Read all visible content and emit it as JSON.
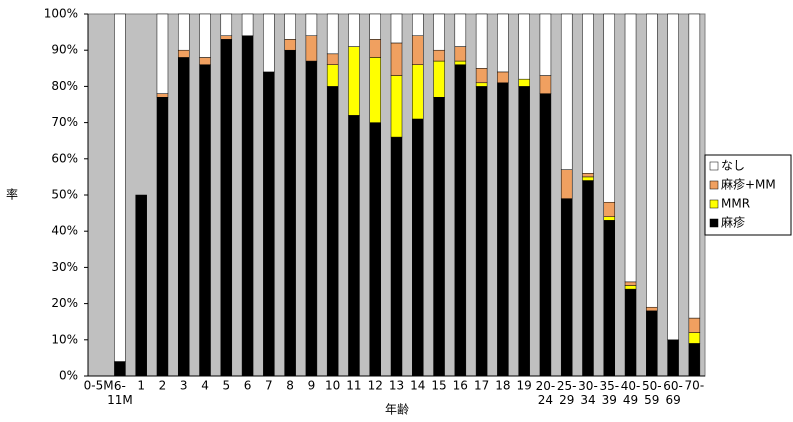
{
  "chart_data": {
    "type": "stacked-bar",
    "x_label": "年齢",
    "y_label": "率",
    "categories": [
      "0-5M",
      "6-11M",
      "1",
      "2",
      "3",
      "4",
      "5",
      "6",
      "7",
      "8",
      "9",
      "10",
      "11",
      "12",
      "13",
      "14",
      "15",
      "16",
      "17",
      "18",
      "19",
      "20-24",
      "25-29",
      "30-34",
      "35-39",
      "40-49",
      "50-59",
      "60-69",
      "70-"
    ],
    "series": [
      {
        "name": "麻疹",
        "color": "#000000",
        "values": [
          0,
          4,
          50,
          77,
          88,
          86,
          93,
          94,
          84,
          90,
          87,
          80,
          72,
          70,
          66,
          71,
          77,
          86,
          80,
          81,
          80,
          78,
          49,
          54,
          43,
          24,
          18,
          10,
          9
        ]
      },
      {
        "name": "MMR",
        "color": "#ffff00",
        "values": [
          0,
          0,
          0,
          0,
          0,
          0,
          0,
          0,
          0,
          0,
          0,
          6,
          19,
          18,
          17,
          15,
          10,
          1,
          1,
          0,
          2,
          0,
          0,
          1,
          1,
          1,
          0,
          0,
          3
        ]
      },
      {
        "name": "麻疹+MM",
        "color": "#f0a060",
        "values": [
          0,
          0,
          0,
          1,
          2,
          2,
          1,
          0,
          0,
          3,
          7,
          3,
          0,
          5,
          9,
          8,
          3,
          4,
          4,
          3,
          0,
          5,
          8,
          1,
          4,
          1,
          1,
          0,
          4
        ]
      },
      {
        "name": "なし",
        "color": "#ffffff",
        "values": [
          0,
          96,
          0,
          22,
          10,
          12,
          6,
          6,
          16,
          7,
          6,
          11,
          9,
          7,
          8,
          6,
          10,
          9,
          15,
          16,
          18,
          17,
          43,
          44,
          52,
          74,
          81,
          90,
          84
        ]
      }
    ],
    "ylim": [
      0,
      100
    ],
    "yticks": [
      {
        "value": 0,
        "label": "0%"
      },
      {
        "value": 10,
        "label": "10%"
      },
      {
        "value": 20,
        "label": "20%"
      },
      {
        "value": 30,
        "label": "30%"
      },
      {
        "value": 40,
        "label": "40%"
      },
      {
        "value": 50,
        "label": "50%"
      },
      {
        "value": 60,
        "label": "60%"
      },
      {
        "value": 70,
        "label": "70%"
      },
      {
        "value": 80,
        "label": "80%"
      },
      {
        "value": 90,
        "label": "90%"
      },
      {
        "value": 100,
        "label": "100%"
      }
    ],
    "grid": false,
    "legend": "right",
    "plot_background": "#c0c0c0"
  }
}
